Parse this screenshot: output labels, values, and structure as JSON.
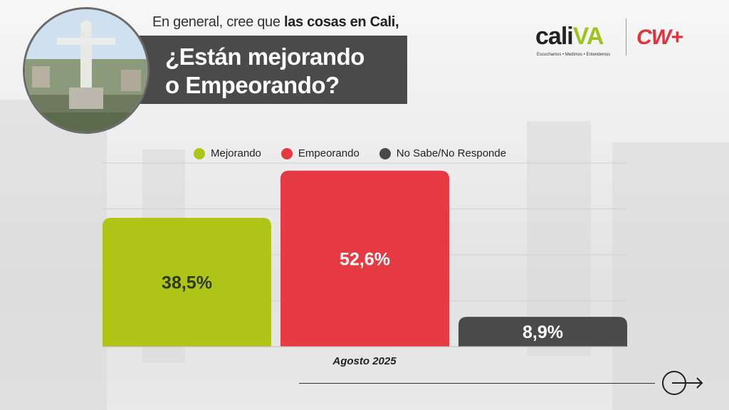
{
  "header": {
    "subtitle_prefix": "En general, cree que ",
    "subtitle_bold": "las cosas en Cali,",
    "title_line1": "¿Están mejorando",
    "title_line2": "o Empeorando?"
  },
  "logos": {
    "cali_text": "cali",
    "va_text": "VA",
    "tagline": "Escuchamos • Medimos • Entendemos",
    "cw_text": "CW+"
  },
  "colors": {
    "mejorando": "#aec416",
    "empeorando": "#e63a43",
    "no_sabe": "#4a4a4a",
    "header_bar": "#4a4a4a",
    "cw_red": "#e0333b"
  },
  "chart_data": {
    "type": "bar",
    "categories": [
      "Agosto 2025"
    ],
    "series": [
      {
        "name": "Mejorando",
        "values": [
          38.5
        ],
        "label": "38,5%",
        "color": "#aec416"
      },
      {
        "name": "Empeorando",
        "values": [
          52.6
        ],
        "label": "52,6%",
        "color": "#e63a43"
      },
      {
        "name": "No Sabe/No Responde",
        "values": [
          8.9
        ],
        "label": "8,9%",
        "color": "#4a4a4a"
      }
    ],
    "xlabel": "Agosto 2025",
    "ylabel": "",
    "ylim": [
      0,
      60
    ],
    "grid": true,
    "legend_position": "top"
  }
}
